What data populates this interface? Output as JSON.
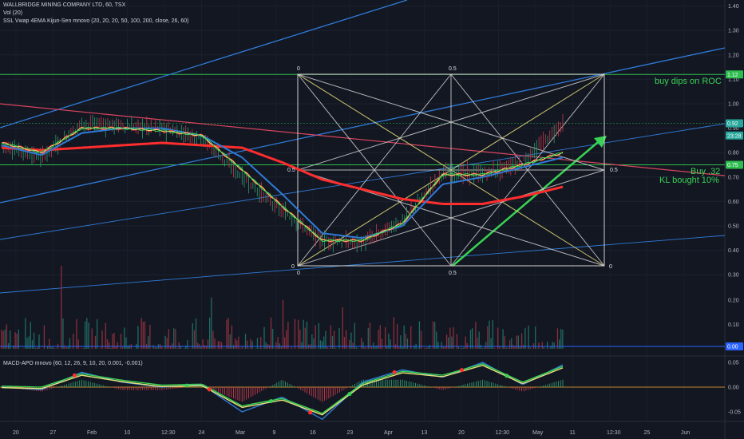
{
  "header": {
    "symbol_line": "WALLBRIDGE MINING COMPANY LTD, 60, TSX",
    "vol_line": "Vol (20)",
    "indicator_line": "SSL Vwap 4EMA Kijun-Sen mnovo (20, 20, 20, 50, 100, 200, close, 26, 60)",
    "macd_line": "MACD-APO mnovo (60, 12, 26, 9, 10, 20, 0.001, -0.001)"
  },
  "colors": {
    "background": "#131722",
    "price_tag": "#26a69a",
    "level_tag": "#2ebd4f",
    "vol_tag": "#2962ff",
    "annotation": "#39d353",
    "ssl_red": "#ff2d2d",
    "ema_blue": "#2f7bd8",
    "downtrend": "#d9455f"
  },
  "annotations": {
    "buy_dips": "buy dips on ROC",
    "buy": "Buy .32",
    "kl_bought": "KL bought 10%"
  },
  "gann_box": {
    "top_left": "0",
    "top_mid": "0.5",
    "mid_left": "0.5",
    "mid_right": "0.5",
    "bottom_left_a": "0",
    "bottom_left_b": "0",
    "bottom_mid": "0.5",
    "bottom_right": "0"
  },
  "price_axis": {
    "labels": [
      "1.40",
      "1.30",
      "1.20",
      "1.10",
      "1.00",
      "0.90",
      "0.80",
      "0.70",
      "0.60",
      "0.50",
      "0.40",
      "0.30"
    ],
    "vol_labels": [
      "0.20",
      "0.10"
    ],
    "macd_labels": [
      "0.05",
      "0.00",
      "-0.05"
    ],
    "tags": [
      {
        "value": 1.12,
        "label": "1.12",
        "color": "#2ebd4f"
      },
      {
        "value": 0.92,
        "label": "0.92",
        "color": "#26a69a"
      },
      {
        "value": 0.87,
        "label": "23:28",
        "color": "#26a69a"
      },
      {
        "value": 0.75,
        "label": "0.75",
        "color": "#2ebd4f"
      }
    ],
    "vol_tag": "0.00"
  },
  "time_axis": [
    "20",
    "27",
    "Feb",
    "10",
    "12:30",
    "24",
    "Mar",
    "9",
    "16",
    "23",
    "Apr",
    "13",
    "20",
    "12:30",
    "May",
    "11",
    "12:30",
    "25",
    "Jun"
  ],
  "chart_data": [
    {
      "type": "line",
      "title": "WALLBRIDGE MINING COMPANY LTD, 60, TSX",
      "x": [
        "20",
        "27",
        "Feb",
        "10",
        "12:30",
        "24",
        "Mar",
        "9",
        "16",
        "23",
        "Apr",
        "13",
        "20",
        "12:30",
        "May"
      ],
      "ylim": [
        0.25,
        1.44
      ],
      "series": [
        {
          "name": "price",
          "values": [
            0.83,
            0.78,
            0.92,
            0.91,
            0.9,
            0.86,
            0.7,
            0.56,
            0.44,
            0.43,
            0.52,
            0.72,
            0.71,
            0.76,
            0.92
          ]
        },
        {
          "name": "SSL",
          "values": [
            0.84,
            0.8,
            0.9,
            0.9,
            0.89,
            0.87,
            0.73,
            0.58,
            0.44,
            0.44,
            0.51,
            0.71,
            0.71,
            0.75,
            0.8
          ]
        },
        {
          "name": "EMA",
          "values": [
            0.83,
            0.79,
            0.88,
            0.9,
            0.9,
            0.87,
            0.78,
            0.63,
            0.47,
            0.45,
            0.5,
            0.67,
            0.7,
            0.74,
            0.78
          ]
        },
        {
          "name": "200",
          "values": [
            0.82,
            0.81,
            0.82,
            0.83,
            0.84,
            0.83,
            0.82,
            0.76,
            0.69,
            0.65,
            0.61,
            0.59,
            0.59,
            0.62,
            0.66
          ]
        }
      ],
      "horizontal_levels": [
        1.12,
        0.92,
        0.75
      ]
    },
    {
      "type": "bar",
      "title": "Vol (20)",
      "ylim": [
        0,
        0.25
      ],
      "note_axis": [
        "0.20",
        "0.10",
        "0.00"
      ]
    },
    {
      "type": "line",
      "title": "MACD-APO mnovo (60, 12, 26, 9, 10, 20, 0.001, -0.001)",
      "x": [
        "20",
        "27",
        "Feb",
        "10",
        "12:30",
        "24",
        "Mar",
        "9",
        "16",
        "23",
        "Apr",
        "13",
        "20",
        "12:30",
        "May"
      ],
      "ylim": [
        -0.07,
        0.07
      ],
      "series": [
        {
          "name": "MACD",
          "values": [
            0.0,
            -0.005,
            0.03,
            0.01,
            0.0,
            0.005,
            -0.05,
            -0.02,
            -0.065,
            0.01,
            0.035,
            0.02,
            0.05,
            0.005,
            0.045
          ]
        },
        {
          "name": "signal",
          "values": [
            0.0,
            -0.002,
            0.025,
            0.012,
            0.002,
            0.004,
            -0.04,
            -0.025,
            -0.055,
            0.005,
            0.03,
            0.022,
            0.045,
            0.008,
            0.04
          ]
        }
      ]
    }
  ]
}
